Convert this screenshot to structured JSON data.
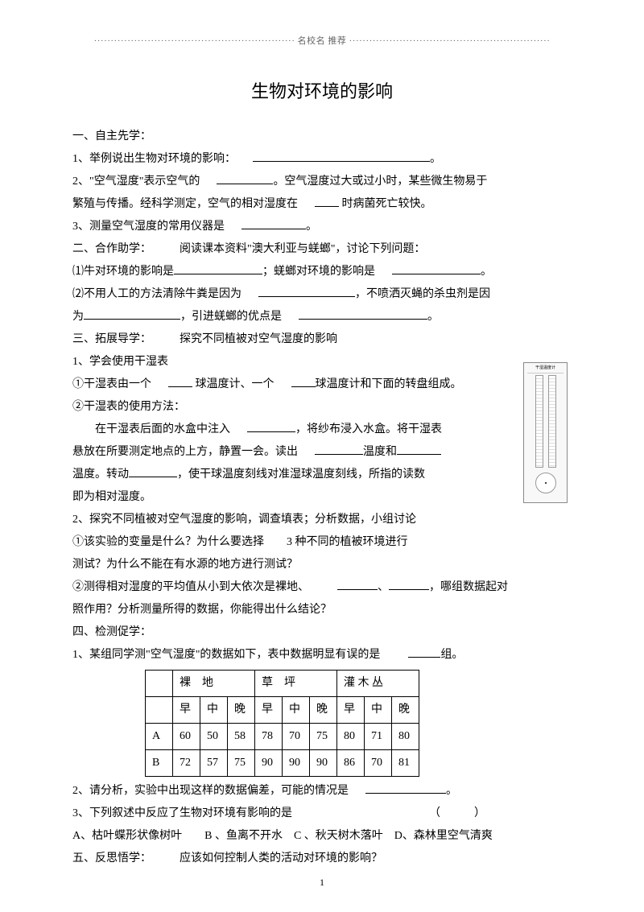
{
  "header": "名校名 推荐",
  "title": "生物对环境的影响",
  "s1": {
    "heading": "一、自主先学：",
    "q1a": "1、举例说出生物对环境的影响：",
    "q2a": "2、\"空气湿度\"表示空气的",
    "q2b": "。空气湿度过大或过小时，某些微生物易于",
    "q2c": "繁殖与传播。经科学测定，空气的相对湿度在",
    "q2d": "时病菌死亡较快。",
    "q3a": "3、测量空气湿度的常用仪器是",
    "period": "。"
  },
  "s2": {
    "heading": "二、合作助学：",
    "heading2": "阅读课本资料\"澳大利亚与蜣螂\"，讨论下列问题：",
    "q1a": "⑴牛对环境的影响是",
    "q1b": "；蜣螂对环境的影响是",
    "q2a": "⑵不用人工的方法清除牛粪是因为",
    "q2b": "，不喷洒灭蝇的杀虫剂是因",
    "q2c": "为",
    "q2d": "，引进蜣螂的优点是",
    "period": "。"
  },
  "s3": {
    "heading": "三、拓展导学：",
    "heading2": "探究不同植被对空气湿度的影响",
    "q1": "1、学会使用干湿表",
    "q1a": "①干湿表由一个",
    "q1b": "球温度计、一个",
    "q1c": "球温度计和下面的转盘组成。",
    "q1d": "②干湿表的使用方法：",
    "q1e": "在干湿表后面的水盒中注入",
    "q1f": "，将纱布浸入水盒。将干湿表",
    "q1g": "悬放在所要测定地点的上方，静置一会。读出",
    "q1h": "温度和",
    "q1i": "温度。转动",
    "q1j": "，使干球温度刻线对准湿球温度刻线，所指的读数",
    "q1k": "即为相对湿度。",
    "q2": "2、探究不同植被对空气湿度的影响，调查填表；分析数据，小组讨论",
    "q2a": "①该实验的变量是什么？为什么要选择　　3 种不同的植被环境进行",
    "q2b": "测试？为什么不能在有水源的地方进行测试？",
    "q2c": "②测得相对湿度的平均值从小到大依次是裸地、",
    "q2d": "、",
    "q2e": "，哪组数据起对",
    "q2f": "照作用？分析测量所得的数据，你能得出什么结论？"
  },
  "s4": {
    "heading": "四、检测促学：",
    "q1a": "1、某组同学测\"空气湿度\"的数据如下，表中数据明显有误的是",
    "q1b": "组。",
    "q2a": "2、请分析，实验中出现这样的数据偏差，可能的情况是",
    "q3a": "3、下列叙述中反应了生物对环境有影响的是",
    "q3b": "（　　　）",
    "opts": "A、枯叶蝶形状像树叶　　B 、鱼离不开水　C 、秋天树木落叶　D、森林里空气清爽",
    "period": "。"
  },
  "s5": {
    "heading": "五、反思悟学：",
    "text": "应该如何控制人类的活动对环境的影响？"
  },
  "table": {
    "groups": [
      "裸　地",
      "草　坪",
      "灌 木 丛"
    ],
    "times": [
      "早",
      "中",
      "晚",
      "早",
      "中",
      "晚",
      "早",
      "中",
      "晚"
    ],
    "rows": [
      {
        "label": "A",
        "vals": [
          "60",
          "50",
          "58",
          "78",
          "70",
          "75",
          "80",
          "71",
          "80"
        ]
      },
      {
        "label": "B",
        "vals": [
          "72",
          "57",
          "75",
          "90",
          "90",
          "90",
          "86",
          "70",
          "81"
        ]
      }
    ]
  },
  "pageNum": "1"
}
